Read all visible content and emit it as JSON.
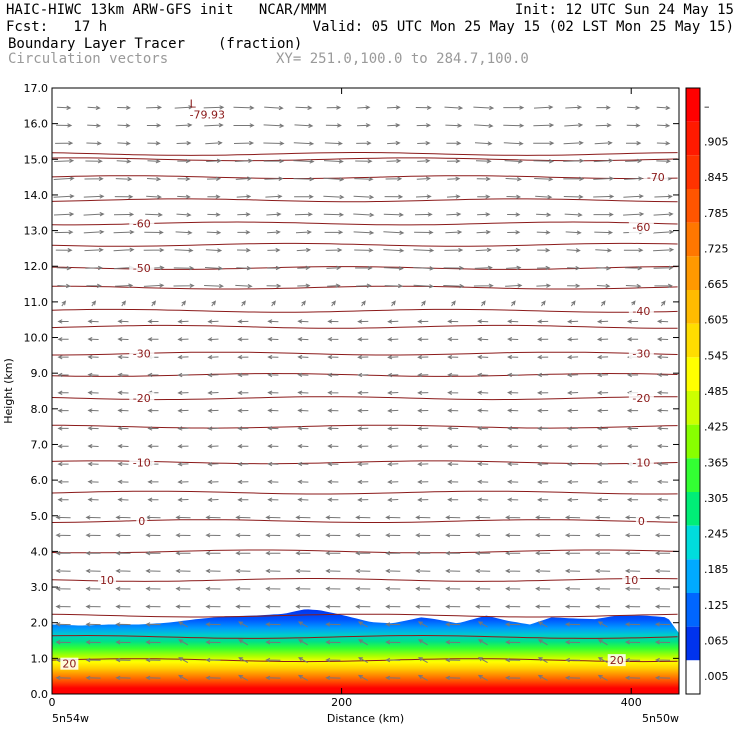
{
  "header": {
    "line1_left": "HAIC-HIWC 13km ARW-GFS init   NCAR/MMM",
    "line1_right": "Init: 12 UTC Sun 24 May 15",
    "line2_left": "Fcst:   17 h",
    "line2_right": "Valid: 05 UTC Mon 25 May 15 (02 LST Mon 25 May 15)",
    "line3_left": "Boundary Layer Tracer",
    "line3_units": "(fraction)",
    "line4_left": "Circulation vectors",
    "line4_right": "XY= 251.0,100.0 to 284.7,100.0"
  },
  "chart_data": {
    "type": "cross-section",
    "xlabel": "Distance (km)",
    "ylabel": "Height (km)",
    "xlim": [
      0,
      433
    ],
    "ylim": [
      0,
      17
    ],
    "x_ticks": [
      0,
      200,
      400
    ],
    "x_tick_labels": [
      "0",
      "200",
      "400"
    ],
    "y_ticks": [
      0,
      1,
      2,
      3,
      4,
      5,
      6,
      7,
      8,
      9,
      10,
      11,
      12,
      13,
      14,
      15,
      16,
      17
    ],
    "y_tick_labels": [
      "0.0",
      "1.0",
      "2.0",
      "3.0",
      "4.0",
      "5.0",
      "6.0",
      "7.0",
      "8.0",
      "9.0",
      "10.0",
      "11.0",
      "12.0",
      "13.0",
      "14.0",
      "15.0",
      "16.0",
      "17.0"
    ],
    "endpoint_left": "5n54w",
    "endpoint_right": "5n50w",
    "colorbar_labels": [
      "–",
      ".905",
      ".845",
      ".785",
      ".725",
      ".665",
      ".605",
      ".545",
      ".485",
      ".425",
      ".365",
      ".305",
      ".245",
      ".185",
      ".125",
      ".065",
      ".005"
    ],
    "colorbar_colors": [
      "#ff0000",
      "#ff1a00",
      "#ff3300",
      "#ff5500",
      "#ff7700",
      "#ff9900",
      "#ffbb00",
      "#ffdd00",
      "#ffff00",
      "#ccff00",
      "#88ff00",
      "#33ff33",
      "#00ee77",
      "#00dddd",
      "#00aaff",
      "#0066ff",
      "#0033ee",
      "#ffffff"
    ],
    "temperature_contour_labels": [
      {
        "text": "20",
        "x": 12,
        "z": 0.85
      },
      {
        "text": "20",
        "x": 390,
        "z": 0.95
      },
      {
        "text": "10",
        "x": 38,
        "z": 3.2
      },
      {
        "text": "10",
        "x": 400,
        "z": 3.2
      },
      {
        "text": "0",
        "x": 62,
        "z": 4.85
      },
      {
        "text": "0",
        "x": 407,
        "z": 4.85
      },
      {
        "text": "-10",
        "x": 62,
        "z": 6.5
      },
      {
        "text": "-10",
        "x": 407,
        "z": 6.5
      },
      {
        "text": "-20",
        "x": 62,
        "z": 8.3
      },
      {
        "text": "-20",
        "x": 407,
        "z": 8.3
      },
      {
        "text": "-30",
        "x": 62,
        "z": 9.55
      },
      {
        "text": "-30",
        "x": 407,
        "z": 9.55
      },
      {
        "text": "-40",
        "x": 407,
        "z": 10.75
      },
      {
        "text": "-50",
        "x": 62,
        "z": 11.95
      },
      {
        "text": "-60",
        "x": 62,
        "z": 13.2
      },
      {
        "text": "-60",
        "x": 407,
        "z": 13.1
      },
      {
        "text": "-70",
        "x": 417,
        "z": 14.5
      }
    ],
    "low_marker": {
      "text": "L",
      "value": "-79.93",
      "x": 95,
      "z": 16.2
    },
    "isotherm_levels_km": [
      0.95,
      1.6,
      2.2,
      3.2,
      4.0,
      4.85,
      5.65,
      6.5,
      7.5,
      8.3,
      8.95,
      9.55,
      10.3,
      10.75,
      11.4,
      11.95,
      12.6,
      13.2,
      13.85,
      14.5,
      15.0,
      15.15
    ],
    "tracer_top_km": [
      [
        0,
        1.95
      ],
      [
        20,
        1.92
      ],
      [
        40,
        1.95
      ],
      [
        60,
        1.95
      ],
      [
        80,
        2.0
      ],
      [
        100,
        2.1
      ],
      [
        120,
        2.18
      ],
      [
        140,
        2.2
      ],
      [
        160,
        2.25
      ],
      [
        175,
        2.38
      ],
      [
        185,
        2.35
      ],
      [
        200,
        2.22
      ],
      [
        220,
        2.02
      ],
      [
        235,
        1.98
      ],
      [
        255,
        2.15
      ],
      [
        265,
        2.1
      ],
      [
        280,
        1.98
      ],
      [
        300,
        2.2
      ],
      [
        315,
        2.05
      ],
      [
        330,
        1.95
      ],
      [
        345,
        2.15
      ],
      [
        360,
        2.12
      ],
      [
        375,
        2.1
      ],
      [
        390,
        2.2
      ],
      [
        410,
        2.2
      ],
      [
        425,
        2.15
      ],
      [
        433,
        1.7
      ]
    ]
  }
}
